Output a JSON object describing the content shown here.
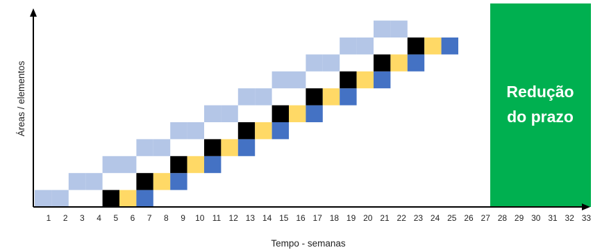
{
  "diagram": {
    "xlabel": "Tempo - semanas",
    "ylabel": "Áreas / elementos",
    "x_ticks": [
      "1",
      "2",
      "3",
      "4",
      "5",
      "6",
      "7",
      "8",
      "9",
      "10",
      "11",
      "12",
      "13",
      "14",
      "15",
      "16",
      "17",
      "18",
      "19",
      "20",
      "21",
      "22",
      "23",
      "24",
      "25",
      "26",
      "27",
      "28",
      "29",
      "30",
      "31",
      "32",
      "33"
    ],
    "rows": 11,
    "phases": [
      {
        "name": "phase-1",
        "color": "#b4c6e7",
        "weeks": 2
      },
      {
        "name": "phase-2",
        "color": "#000000",
        "weeks": 1
      },
      {
        "name": "phase-3",
        "color": "#ffd966",
        "weeks": 1
      },
      {
        "name": "phase-4",
        "color": "#4472c4",
        "weeks": 1
      }
    ],
    "reduction_box": {
      "line1": "Redução",
      "line2": "do prazo",
      "color": "#00b050",
      "start_week": 28,
      "end_week": 33
    }
  }
}
